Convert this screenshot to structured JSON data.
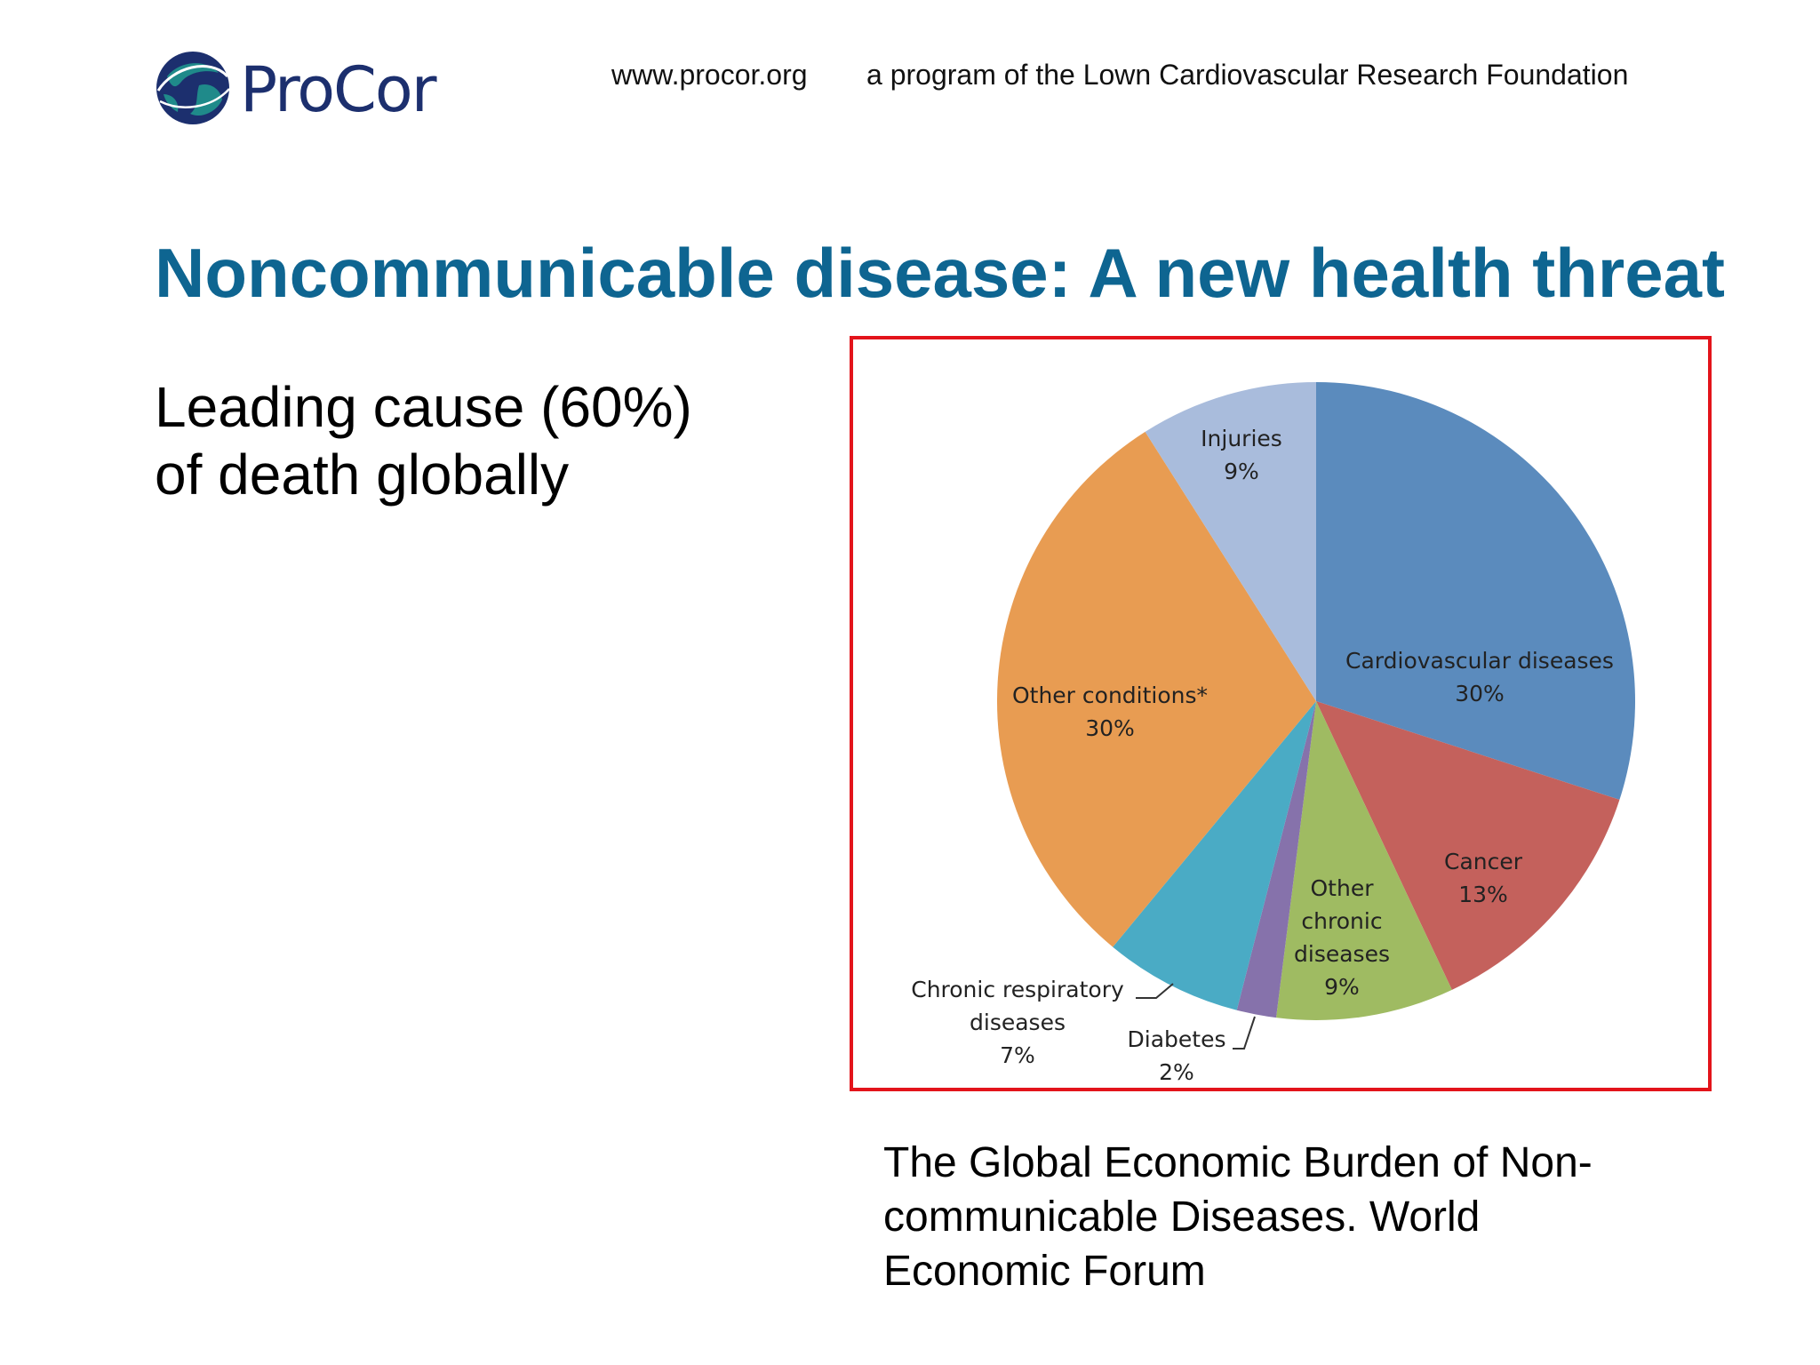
{
  "header": {
    "logo_text": "ProCor",
    "url": "www.procor.org",
    "program": "a program of the Lown Cardiovascular Research Foundation"
  },
  "slide": {
    "title": "Noncommunicable disease: A new health threat",
    "lead_line1": "Leading cause (60%)",
    "lead_line2": "of death globally",
    "caption_line1": "The Global Economic Burden of Non-",
    "caption_line2": "communicable Diseases. World",
    "caption_line3": "Economic Forum"
  },
  "colors": {
    "title": "#0e6591",
    "frame": "#e3141b",
    "logo_navy": "#1c2f6e",
    "logo_teal": "#1f8a8a"
  },
  "chart_data": {
    "type": "pie",
    "title": "",
    "slices": [
      {
        "name": "Cardiovascular diseases",
        "value": 30,
        "label": "30%",
        "color": "#5b8bbd"
      },
      {
        "name": "Cancer",
        "value": 13,
        "label": "13%",
        "color": "#c4615c"
      },
      {
        "name": "Other chronic diseases",
        "value": 9,
        "label": "9%",
        "color": "#9fbb62"
      },
      {
        "name": "Diabetes",
        "value": 2,
        "label": "2%",
        "color": "#8672ab"
      },
      {
        "name": "Chronic respiratory diseases",
        "value": 7,
        "label": "7%",
        "color": "#4aabc5"
      },
      {
        "name": "Other conditions*",
        "value": 30,
        "label": "30%",
        "color": "#e89c52"
      },
      {
        "name": "Injuries",
        "value": 9,
        "label": "9%",
        "color": "#a9bcdc"
      }
    ]
  }
}
